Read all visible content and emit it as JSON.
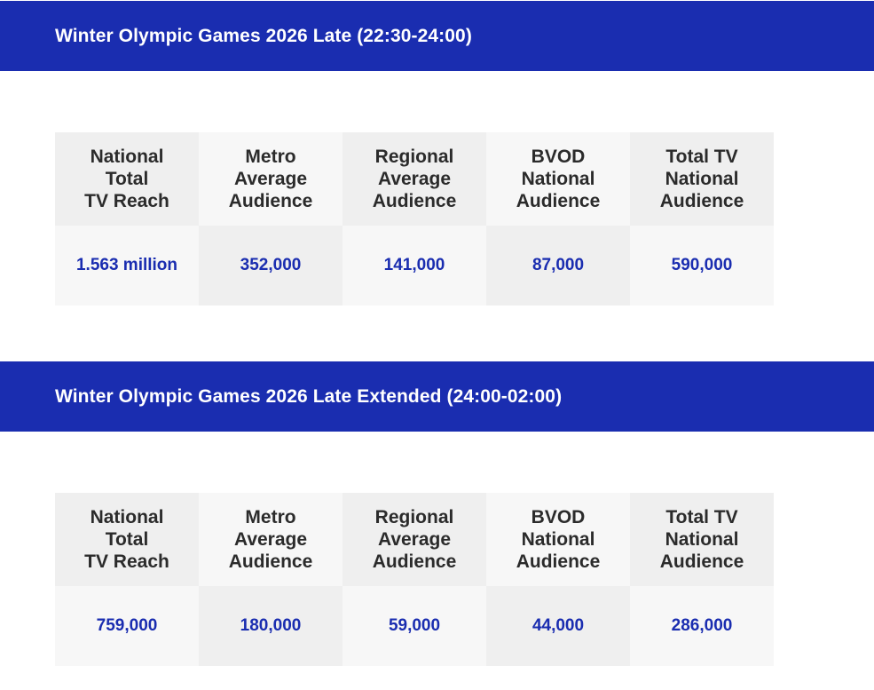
{
  "sections": [
    {
      "title": "Winter Olympic Games 2026 Late (22:30-24:00)",
      "columns": [
        {
          "header": "National\nTotal\nTV Reach",
          "value": "1.563 million"
        },
        {
          "header": "Metro\nAverage\nAudience",
          "value": "352,000"
        },
        {
          "header": "Regional\nAverage\nAudience",
          "value": "141,000"
        },
        {
          "header": "BVOD\nNational\nAudience",
          "value": "87,000"
        },
        {
          "header": "Total TV\nNational\nAudience",
          "value": "590,000"
        }
      ]
    },
    {
      "title": "Winter Olympic Games 2026 Late Extended (24:00-02:00)",
      "columns": [
        {
          "header": "National\nTotal\nTV Reach",
          "value": "759,000"
        },
        {
          "header": "Metro\nAverage\nAudience",
          "value": "180,000"
        },
        {
          "header": "Regional\nAverage\nAudience",
          "value": "59,000"
        },
        {
          "header": "BVOD\nNational\nAudience",
          "value": "44,000"
        },
        {
          "header": "Total TV\nNational\nAudience",
          "value": "286,000"
        }
      ]
    }
  ],
  "colors": {
    "banner": "#1a2db0",
    "value_text": "#1a2db0",
    "header_text": "#2b2b2b",
    "cell_dark": "#efefef",
    "cell_light": "#f7f7f7"
  }
}
